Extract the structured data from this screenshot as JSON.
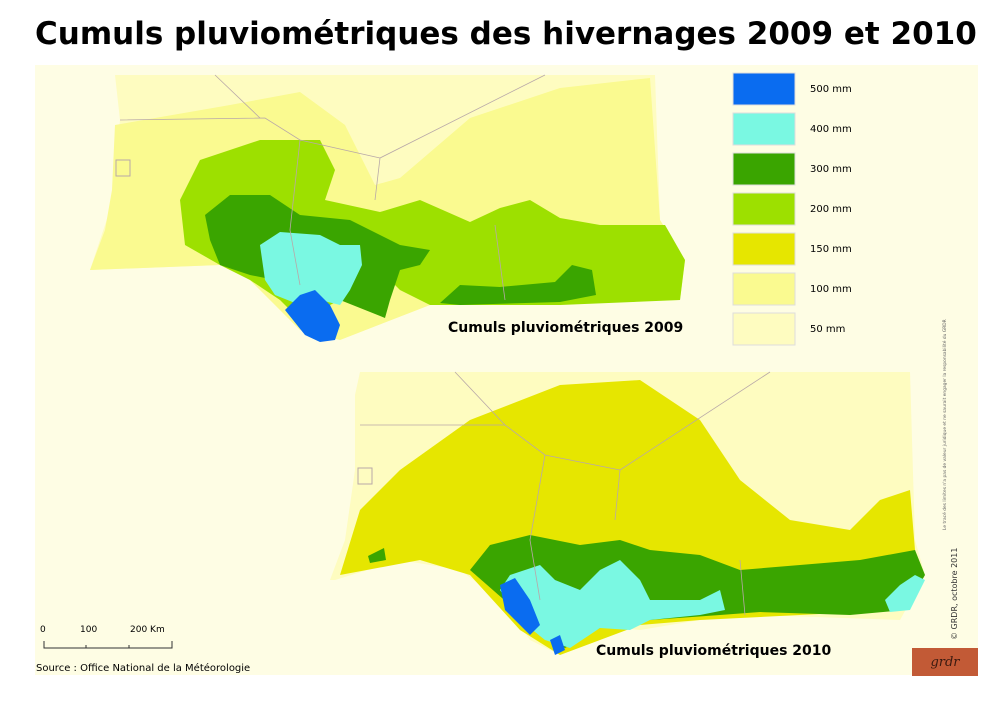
{
  "title": "Cumuls pluviométriques des hivernages 2009 et 2010",
  "maps": [
    {
      "caption": "Cumuls pluviométriques 2009"
    },
    {
      "caption": "Cumuls pluviométriques 2010"
    }
  ],
  "legend": [
    {
      "label": "500 mm",
      "color": "#0a6cf0"
    },
    {
      "label": "400 mm",
      "color": "#7af8e2"
    },
    {
      "label": "300 mm",
      "color": "#3aa500"
    },
    {
      "label": "200 mm",
      "color": "#9de000"
    },
    {
      "label": "150 mm",
      "color": "#e6e600"
    },
    {
      "label": "100 mm",
      "color": "#fafa90"
    },
    {
      "label": "50 mm",
      "color": "#fefcc0"
    }
  ],
  "scale_bar": {
    "labels": [
      "0",
      "100",
      "200 Km"
    ]
  },
  "source": "Source : Office National de la Météorologie",
  "copyright": "© GRDR, octobre 2011",
  "disclaimer": "Le tracé des limites n'a pas de valeur juridique et ne saurait engager la responsabilité du GRDR",
  "logo": "grdr"
}
